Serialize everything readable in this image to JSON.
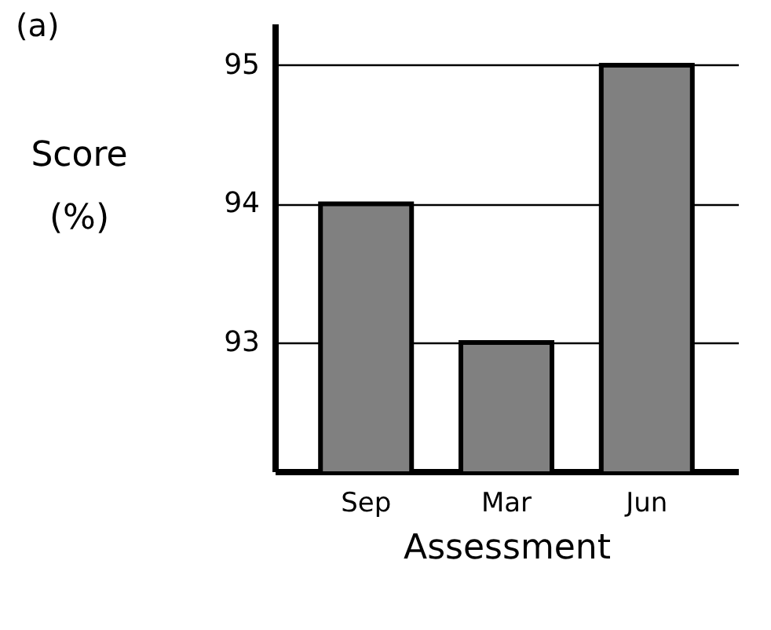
{
  "chart_data": {
    "type": "bar",
    "xlabel": "Assessment",
    "ylabel": "Score (%)",
    "annotations": [
      "(a)"
    ],
    "categories": [
      "Sep",
      "Mar",
      "Jun"
    ],
    "values": [
      94,
      93,
      95
    ],
    "color": "#808080",
    "ylim": [
      92.07,
      95.3
    ],
    "yticks": [
      93,
      94,
      95
    ],
    "grid": "y"
  }
}
